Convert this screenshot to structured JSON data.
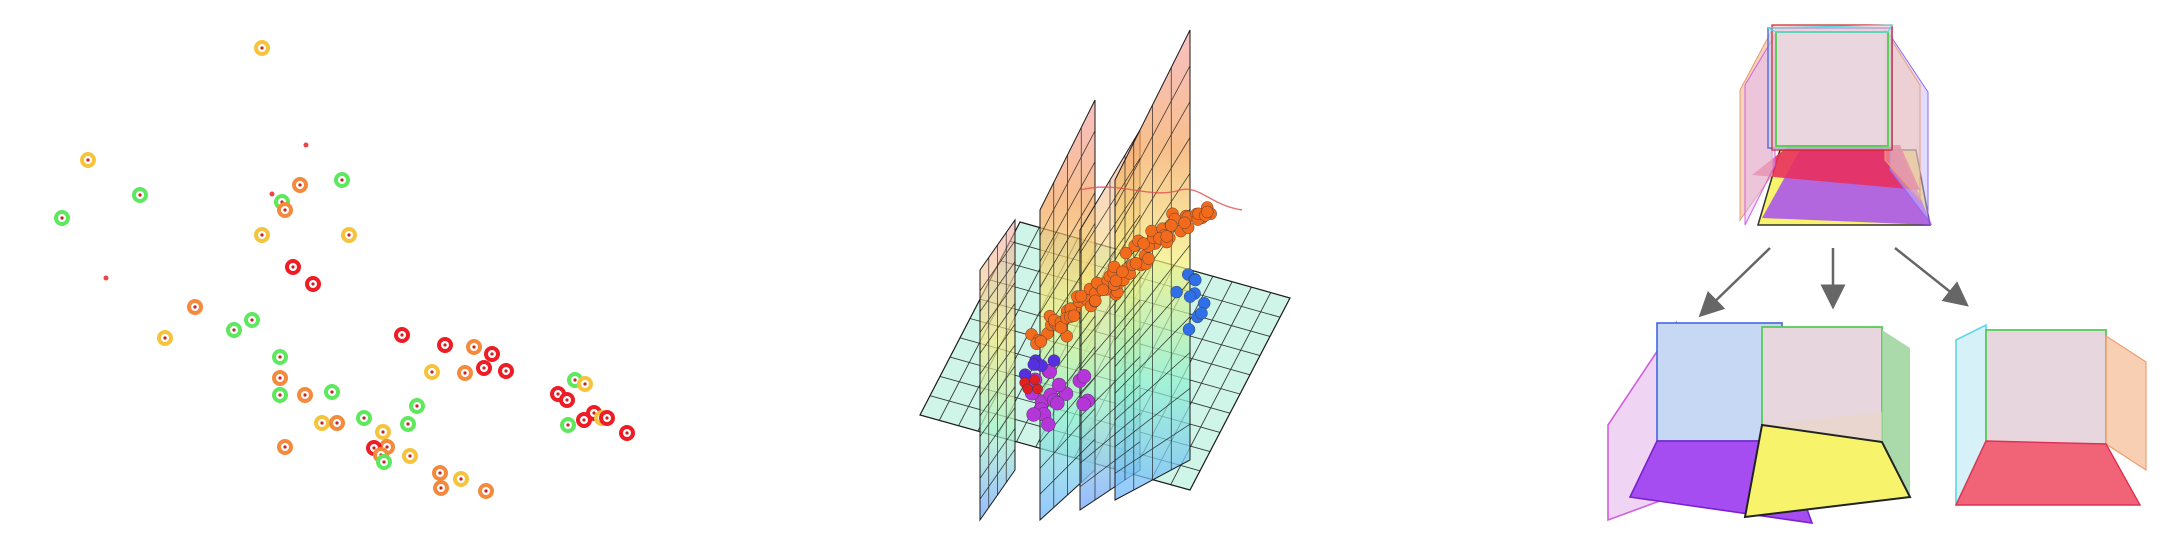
{
  "colors": {
    "marker_red": "#ee1c25",
    "marker_orange": "#f58a3c",
    "marker_yellow": "#f5c33c",
    "marker_green": "#5ee85e",
    "grid_cyan": "#b8efe0",
    "cube_blue": "#c7d8f5",
    "cube_purple": "#a64df2",
    "cube_yellow": "#f7f36a",
    "cube_red": "#f16377",
    "arrow_gray": "#666666"
  },
  "panels": {
    "scatter": {
      "type": "2d-point-markers",
      "marker_style": "ring-with-center-dot"
    },
    "planes": {
      "type": "3d-grid-planes-with-point-clusters",
      "cluster_colors": [
        "orange",
        "purple",
        "blue",
        "red"
      ]
    },
    "cube": {
      "type": "cube-decomposition",
      "arrow_count": 3,
      "sub_views": [
        "front-left-bottom",
        "front-right-bottom",
        "front-right-left"
      ]
    }
  }
}
